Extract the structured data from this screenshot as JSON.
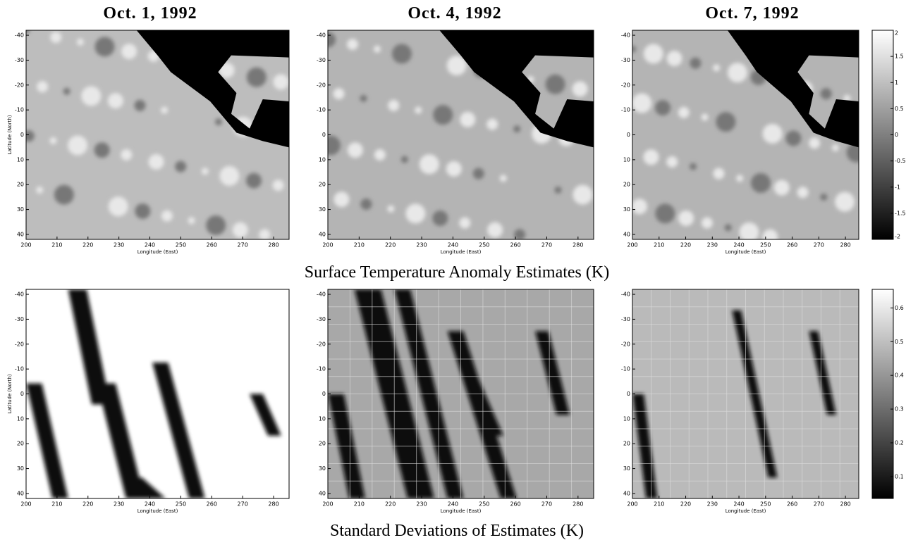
{
  "figure": {
    "column_titles": [
      "Oct. 1, 1992",
      "Oct. 4, 1992",
      "Oct. 7, 1992"
    ],
    "row_captions": [
      "Surface Temperature Anomaly Estimates (K)",
      "Standard Deviations of Estimates (K)"
    ],
    "x_label": "Longitude (East)",
    "y_label": "Latitude (North)",
    "xlim": [
      200,
      285
    ],
    "xticks": [
      200,
      210,
      220,
      230,
      240,
      250,
      260,
      270,
      280
    ],
    "ylim": [
      -42,
      42
    ],
    "yticks": [
      -40,
      -30,
      -20,
      -10,
      0,
      10,
      20,
      30,
      40
    ],
    "colorbars": [
      {
        "lim": [
          -2,
          2
        ],
        "ticks": [
          -2,
          -1.5,
          -1,
          -0.5,
          0,
          0.5,
          1,
          1.5,
          2
        ]
      },
      {
        "lim": [
          0.035,
          0.655
        ],
        "ticks": [
          0.1,
          0.2,
          0.3,
          0.4,
          0.5,
          0.6
        ]
      }
    ]
  }
}
